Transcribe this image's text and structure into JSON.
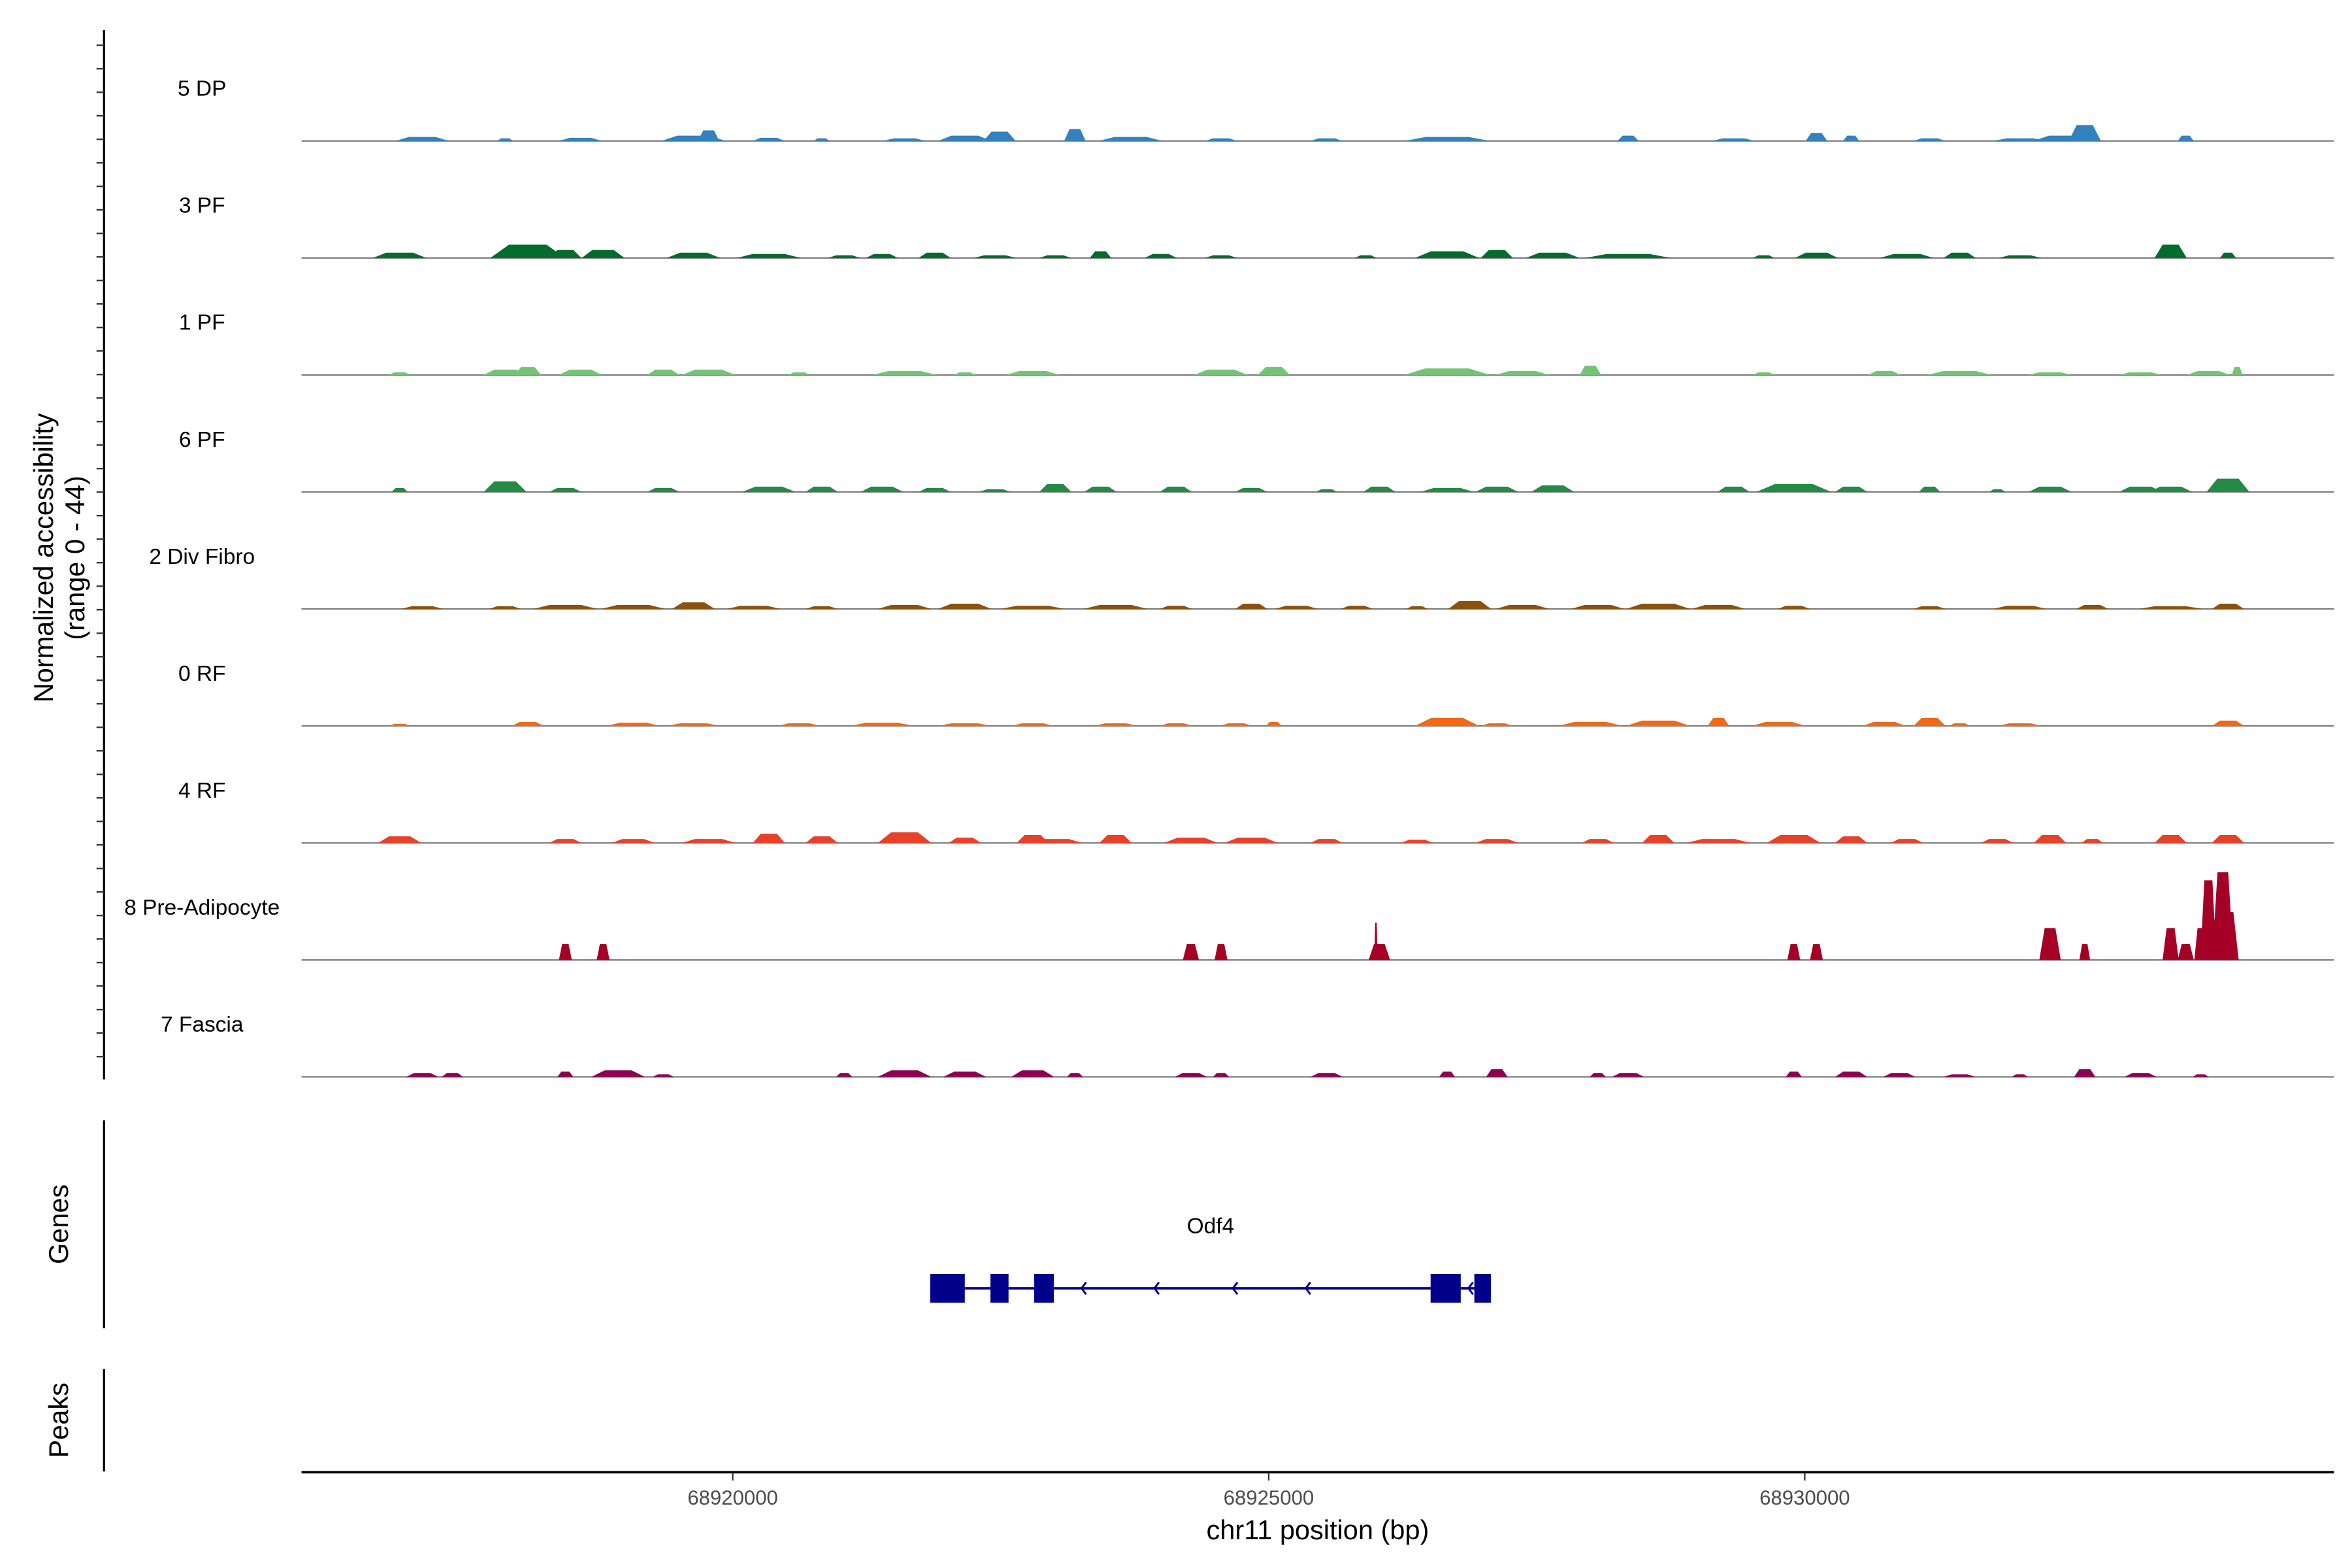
{
  "chart_data": {
    "type": "area",
    "title": "",
    "xlabel": "chr11 position (bp)",
    "ylabel": "Normalized accessibility",
    "ylabel_range": "(range 0 - 44)",
    "xlim": [
      68915978,
      68934936
    ],
    "ylim": [
      0,
      44
    ],
    "x_ticks": [
      {
        "value": 68920000,
        "label": "68920000"
      },
      {
        "value": 68925000,
        "label": "68925000"
      },
      {
        "value": 68930000,
        "label": "68930000"
      }
    ],
    "peak_format": "[center_bp, height, width_bp]",
    "series": [
      {
        "name": "5 DP",
        "color": "#3182BD",
        "peaks": [
          [
            68917104,
            1.5,
            500
          ],
          [
            68917877,
            1,
            150
          ],
          [
            68918580,
            1.2,
            400
          ],
          [
            68919634,
            2,
            600
          ],
          [
            68919775,
            4,
            200
          ],
          [
            68920337,
            1.2,
            300
          ],
          [
            68920830,
            1,
            150
          ],
          [
            68921603,
            1,
            400
          ],
          [
            68922165,
            2,
            500
          ],
          [
            68922489,
            3.5,
            300
          ],
          [
            68923192,
            4.5,
            200
          ],
          [
            68923712,
            1.5,
            600
          ],
          [
            68924555,
            1,
            300
          ],
          [
            68925540,
            1,
            300
          ],
          [
            68926664,
            1.5,
            800
          ],
          [
            68928352,
            2,
            200
          ],
          [
            68929336,
            1,
            400
          ],
          [
            68930109,
            3,
            200
          ],
          [
            68930433,
            2,
            150
          ],
          [
            68931164,
            1,
            300
          ],
          [
            68932007,
            1,
            500
          ],
          [
            68932429,
            2,
            600
          ],
          [
            68932612,
            6,
            300
          ],
          [
            68933554,
            2,
            150
          ]
        ]
      },
      {
        "name": "3 PF",
        "color": "#006D2C",
        "peaks": [
          [
            68916893,
            2,
            500
          ],
          [
            68918088,
            5,
            700
          ],
          [
            68918439,
            3,
            300
          ],
          [
            68918791,
            3,
            400
          ],
          [
            68919634,
            2,
            500
          ],
          [
            68920337,
            1.5,
            600
          ],
          [
            68921040,
            1,
            300
          ],
          [
            68921392,
            1.5,
            300
          ],
          [
            68921884,
            2,
            300
          ],
          [
            68922446,
            1,
            400
          ],
          [
            68923009,
            1,
            300
          ],
          [
            68923431,
            2.5,
            200
          ],
          [
            68923993,
            1.5,
            300
          ],
          [
            68924555,
            1,
            300
          ],
          [
            68925905,
            1,
            200
          ],
          [
            68926664,
            2.5,
            600
          ],
          [
            68927128,
            3,
            300
          ],
          [
            68927649,
            2,
            500
          ],
          [
            68928352,
            1.5,
            800
          ],
          [
            68929617,
            1,
            200
          ],
          [
            68930109,
            2,
            400
          ],
          [
            68930953,
            1.5,
            500
          ],
          [
            68931445,
            2,
            300
          ],
          [
            68932007,
            1,
            400
          ],
          [
            68933413,
            5,
            300
          ],
          [
            68933948,
            2,
            150
          ]
        ]
      },
      {
        "name": "1 PF",
        "color": "#74C476",
        "peaks": [
          [
            68916893,
            1,
            200
          ],
          [
            68917877,
            2,
            400
          ],
          [
            68918088,
            3,
            250
          ],
          [
            68918580,
            2,
            400
          ],
          [
            68919353,
            2,
            300
          ],
          [
            68919775,
            2,
            500
          ],
          [
            68920619,
            1,
            200
          ],
          [
            68921603,
            1.5,
            600
          ],
          [
            68922165,
            1,
            200
          ],
          [
            68922798,
            1.5,
            500
          ],
          [
            68924555,
            2,
            500
          ],
          [
            68925048,
            3,
            300
          ],
          [
            68926664,
            2.5,
            800
          ],
          [
            68927367,
            1.5,
            500
          ],
          [
            68928000,
            3.5,
            200
          ],
          [
            68929617,
            1,
            200
          ],
          [
            68930742,
            1.5,
            300
          ],
          [
            68931445,
            1.5,
            600
          ],
          [
            68932288,
            1,
            400
          ],
          [
            68933132,
            1,
            400
          ],
          [
            68933765,
            1.5,
            400
          ],
          [
            68934033,
            3,
            100
          ]
        ]
      },
      {
        "name": "6 PF",
        "color": "#238B45",
        "peaks": [
          [
            68916893,
            1.5,
            150
          ],
          [
            68917877,
            4,
            400
          ],
          [
            68918439,
            1.5,
            300
          ],
          [
            68919353,
            1.5,
            300
          ],
          [
            68920337,
            2,
            500
          ],
          [
            68920830,
            2,
            300
          ],
          [
            68921392,
            2,
            400
          ],
          [
            68921884,
            1.5,
            300
          ],
          [
            68922446,
            1,
            300
          ],
          [
            68923009,
            3,
            300
          ],
          [
            68923431,
            2,
            300
          ],
          [
            68924134,
            2,
            300
          ],
          [
            68924837,
            1.5,
            300
          ],
          [
            68925540,
            1,
            200
          ],
          [
            68926032,
            2,
            300
          ],
          [
            68926664,
            1.5,
            500
          ],
          [
            68927128,
            2,
            400
          ],
          [
            68927649,
            2.5,
            400
          ],
          [
            68929336,
            2,
            300
          ],
          [
            68929898,
            3,
            700
          ],
          [
            68930433,
            2,
            300
          ],
          [
            68931164,
            2,
            200
          ],
          [
            68931796,
            1,
            150
          ],
          [
            68932288,
            2,
            400
          ],
          [
            68933132,
            2,
            400
          ],
          [
            68933413,
            2,
            400
          ],
          [
            68933948,
            5,
            400
          ]
        ]
      },
      {
        "name": "2 Div Fibro",
        "color": "#8C510A",
        "peaks": [
          [
            68917104,
            1,
            400
          ],
          [
            68917877,
            1,
            300
          ],
          [
            68918439,
            1.5,
            600
          ],
          [
            68919072,
            1.5,
            600
          ],
          [
            68919634,
            2.5,
            400
          ],
          [
            68920197,
            1.2,
            500
          ],
          [
            68920830,
            1,
            300
          ],
          [
            68921603,
            1.5,
            500
          ],
          [
            68922165,
            2,
            500
          ],
          [
            68922798,
            1.2,
            600
          ],
          [
            68923571,
            1.5,
            600
          ],
          [
            68924134,
            1.2,
            300
          ],
          [
            68924837,
            2,
            300
          ],
          [
            68925258,
            1.2,
            400
          ],
          [
            68925821,
            1.2,
            300
          ],
          [
            68926383,
            1,
            200
          ],
          [
            68926875,
            3,
            400
          ],
          [
            68927367,
            1.5,
            500
          ],
          [
            68928070,
            1.5,
            500
          ],
          [
            68928633,
            2,
            600
          ],
          [
            68929195,
            1.5,
            500
          ],
          [
            68929898,
            1.2,
            300
          ],
          [
            68931164,
            1,
            300
          ],
          [
            68932007,
            1.2,
            500
          ],
          [
            68932682,
            1.5,
            300
          ],
          [
            68933413,
            1,
            600
          ],
          [
            68933948,
            2,
            300
          ]
        ]
      },
      {
        "name": "0 RF",
        "color": "#F16913",
        "peaks": [
          [
            68916893,
            0.8,
            200
          ],
          [
            68918088,
            1.5,
            300
          ],
          [
            68919072,
            1.2,
            500
          ],
          [
            68919634,
            1,
            500
          ],
          [
            68920619,
            1,
            400
          ],
          [
            68921392,
            1.2,
            600
          ],
          [
            68922165,
            1,
            500
          ],
          [
            68922798,
            1,
            400
          ],
          [
            68923571,
            1,
            400
          ],
          [
            68924134,
            1,
            300
          ],
          [
            68924696,
            1,
            300
          ],
          [
            68925048,
            1.5,
            150
          ],
          [
            68926664,
            3,
            600
          ],
          [
            68927128,
            1,
            300
          ],
          [
            68928000,
            1.5,
            600
          ],
          [
            68928633,
            2,
            600
          ],
          [
            68929195,
            3,
            200
          ],
          [
            68929758,
            1.5,
            500
          ],
          [
            68930742,
            1.5,
            400
          ],
          [
            68931164,
            3,
            300
          ],
          [
            68931445,
            1,
            200
          ],
          [
            68932007,
            1,
            400
          ],
          [
            68933948,
            2,
            300
          ]
        ]
      },
      {
        "name": "4 RF",
        "color": "#E8412A",
        "peaks": [
          [
            68916893,
            2.5,
            400
          ],
          [
            68918439,
            1.5,
            300
          ],
          [
            68919072,
            1.5,
            400
          ],
          [
            68919775,
            1.5,
            500
          ],
          [
            68920337,
            3.5,
            300
          ],
          [
            68920830,
            2.5,
            300
          ],
          [
            68921603,
            4,
            500
          ],
          [
            68922165,
            2,
            300
          ],
          [
            68922798,
            3,
            300
          ],
          [
            68923009,
            1.5,
            500
          ],
          [
            68923571,
            3,
            300
          ],
          [
            68924274,
            2,
            500
          ],
          [
            68924837,
            2,
            500
          ],
          [
            68925540,
            1.5,
            300
          ],
          [
            68926383,
            1.2,
            300
          ],
          [
            68927128,
            1.5,
            400
          ],
          [
            68928070,
            1.5,
            300
          ],
          [
            68928633,
            3,
            300
          ],
          [
            68929195,
            1.5,
            600
          ],
          [
            68929898,
            3,
            500
          ],
          [
            68930433,
            2.5,
            300
          ],
          [
            68930953,
            1.5,
            300
          ],
          [
            68931796,
            1.5,
            300
          ],
          [
            68932288,
            3,
            300
          ],
          [
            68932682,
            1.5,
            200
          ],
          [
            68933413,
            3,
            300
          ],
          [
            68933948,
            3,
            300
          ]
        ]
      },
      {
        "name": "8 Pre-Adipocyte",
        "color": "#A50026",
        "peaks": [
          [
            68918439,
            6,
            120
          ],
          [
            68918791,
            6,
            120
          ],
          [
            68924274,
            6,
            150
          ],
          [
            68924555,
            6,
            120
          ],
          [
            68926032,
            6,
            200
          ],
          [
            68926000,
            14,
            30
          ],
          [
            68929898,
            6,
            120
          ],
          [
            68930109,
            6,
            120
          ],
          [
            68932288,
            12,
            200
          ],
          [
            68932612,
            6,
            100
          ],
          [
            68933413,
            12,
            150
          ],
          [
            68933554,
            6,
            150
          ],
          [
            68933694,
            12,
            120
          ],
          [
            68933765,
            30,
            150
          ],
          [
            68933900,
            33,
            200
          ],
          [
            68933948,
            18,
            200
          ]
        ]
      },
      {
        "name": "7 Fascia",
        "color": "#8E0152",
        "peaks": [
          [
            68917104,
            1.5,
            300
          ],
          [
            68917385,
            1.5,
            200
          ],
          [
            68918439,
            2,
            150
          ],
          [
            68918931,
            2.5,
            500
          ],
          [
            68919353,
            1,
            200
          ],
          [
            68921040,
            1.5,
            150
          ],
          [
            68921603,
            2.5,
            500
          ],
          [
            68922165,
            2,
            400
          ],
          [
            68922798,
            2.5,
            400
          ],
          [
            68923192,
            1.5,
            150
          ],
          [
            68924274,
            1.5,
            300
          ],
          [
            68924555,
            1.5,
            150
          ],
          [
            68925540,
            1.5,
            300
          ],
          [
            68926664,
            2,
            150
          ],
          [
            68927128,
            3,
            200
          ],
          [
            68928070,
            1.5,
            150
          ],
          [
            68928352,
            1.5,
            300
          ],
          [
            68929898,
            2,
            150
          ],
          [
            68930433,
            2,
            300
          ],
          [
            68930882,
            1.5,
            300
          ],
          [
            68931445,
            1,
            300
          ],
          [
            68932007,
            1,
            150
          ],
          [
            68932612,
            3,
            200
          ],
          [
            68933132,
            1.5,
            300
          ],
          [
            68933694,
            1,
            150
          ]
        ]
      }
    ],
    "genes_label": "Genes",
    "peaks_label": "Peaks",
    "genes": [
      {
        "name": "Odf4",
        "strand": "-",
        "color": "#00008B",
        "start": 68921842,
        "end": 68927072,
        "exons": [
          [
            68921842,
            68922165
          ],
          [
            68922404,
            68922573
          ],
          [
            68922812,
            68922995
          ],
          [
            68926510,
            68926791
          ],
          [
            68926918,
            68927072
          ]
        ]
      }
    ]
  }
}
